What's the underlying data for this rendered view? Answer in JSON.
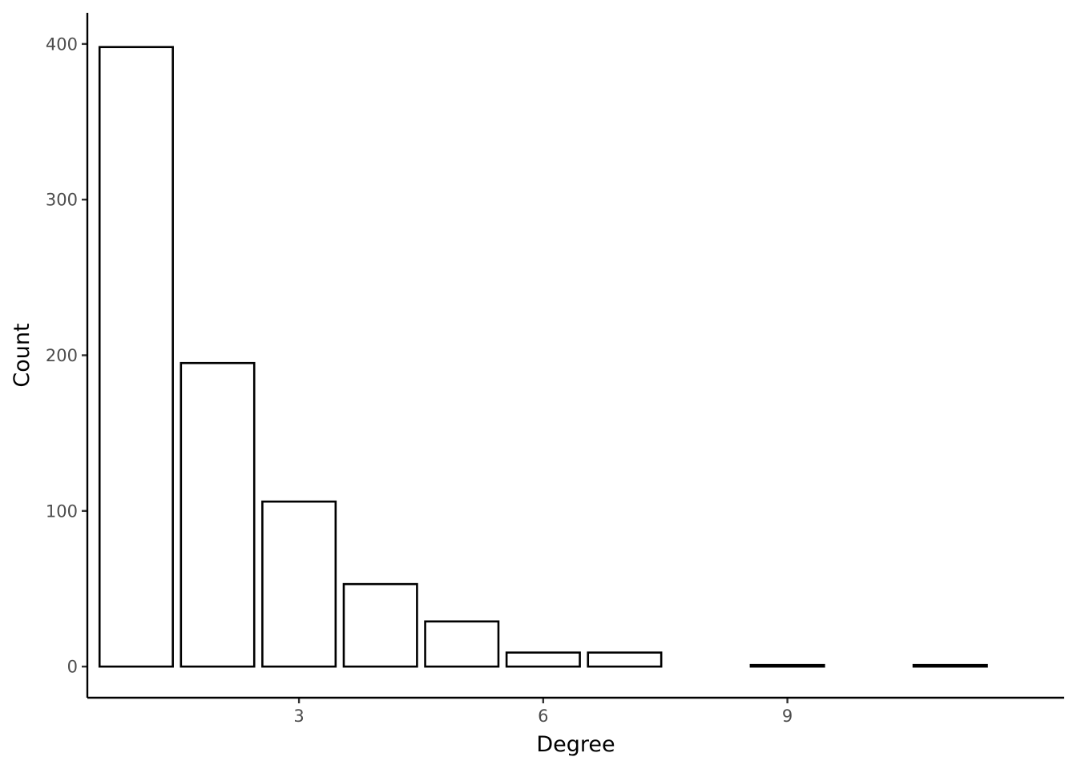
{
  "chart_data": {
    "type": "bar",
    "title": "",
    "xlabel": "Degree",
    "ylabel": "Count",
    "x": [
      1,
      2,
      3,
      4,
      5,
      6,
      7,
      8,
      9,
      10,
      11
    ],
    "values": [
      398,
      195,
      106,
      53,
      29,
      9,
      9,
      0,
      1,
      0,
      1
    ],
    "xlim": [
      0.4,
      12.4
    ],
    "ylim": [
      -20,
      420
    ],
    "x_ticks": [
      3,
      6,
      9
    ],
    "x_tick_labels": [
      "3",
      "6",
      "9"
    ],
    "y_ticks": [
      0,
      100,
      200,
      300,
      400
    ],
    "y_tick_labels": [
      "0",
      "100",
      "200",
      "300",
      "400"
    ],
    "bar_fill": "#ffffff",
    "bar_stroke": "#000000",
    "grid": false,
    "legend": "none"
  }
}
